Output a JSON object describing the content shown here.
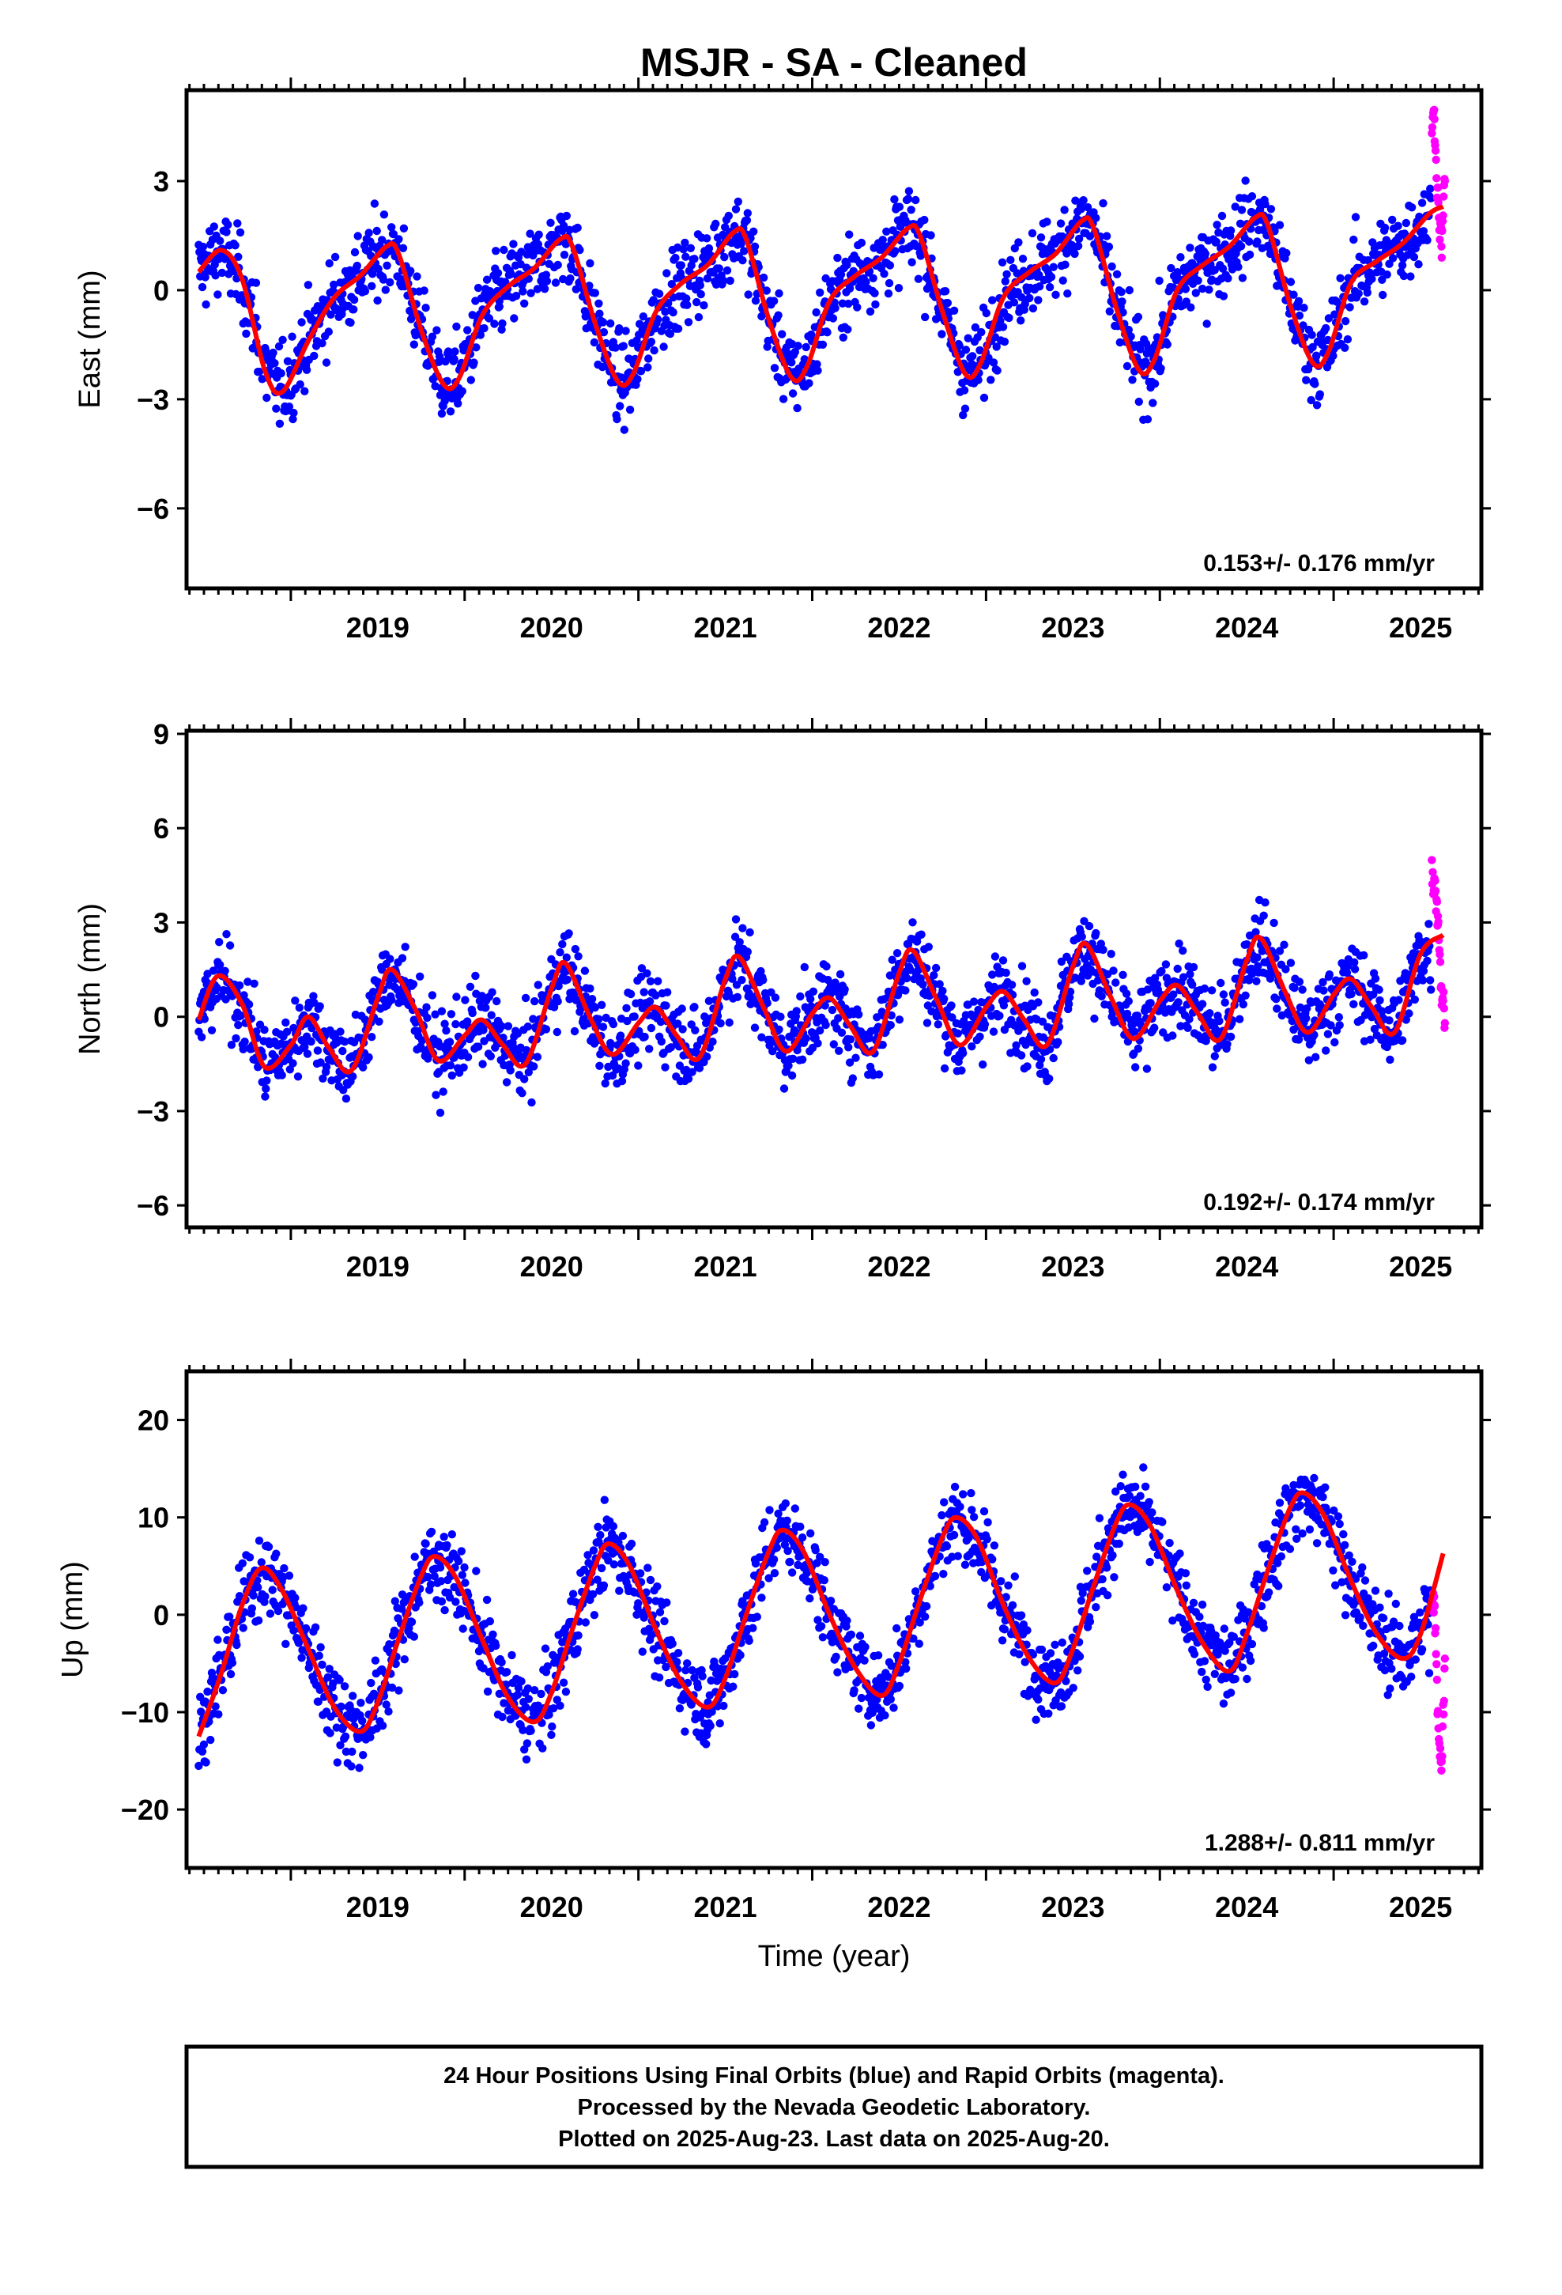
{
  "title": "MSJR  - SA - Cleaned",
  "colors": {
    "final": "#0000ff",
    "rapid": "#ff00ff",
    "model": "#ff0000",
    "frame": "#000000"
  },
  "footer": {
    "line1": "24 Hour Positions Using Final Orbits (blue) and Rapid Orbits (magenta).",
    "line2": "Processed by the Nevada Geodetic Laboratory.",
    "line3": "Plotted on 2025-Aug-23. Last data on 2025-Aug-20."
  },
  "chart_data": [
    {
      "type": "scatter",
      "component": "east",
      "ylabel": "East (mm)",
      "xlabel": "",
      "rate_text": "0.153+/- 0.176 mm/yr",
      "xlim": [
        2018.4,
        2025.85
      ],
      "ylim": [
        -8.2,
        5.5
      ],
      "yticks": [
        -6,
        -3,
        0,
        3
      ],
      "xticks": [
        2019,
        2020,
        2021,
        2022,
        2023,
        2024,
        2025
      ],
      "grid": false,
      "series": [
        {
          "role": "model",
          "x": [
            2018.47,
            2018.6,
            2018.72,
            2018.85,
            2018.95,
            2019.1,
            2019.25,
            2019.4,
            2019.55,
            2019.62,
            2019.75,
            2019.88,
            2019.97,
            2020.1,
            2020.25,
            2020.4,
            2020.55,
            2020.62,
            2020.75,
            2020.88,
            2020.97,
            2021.1,
            2021.25,
            2021.4,
            2021.55,
            2021.62,
            2021.75,
            2021.88,
            2021.97,
            2022.1,
            2022.25,
            2022.4,
            2022.55,
            2022.62,
            2022.75,
            2022.88,
            2022.97,
            2023.1,
            2023.25,
            2023.4,
            2023.55,
            2023.62,
            2023.75,
            2023.88,
            2023.97,
            2024.1,
            2024.25,
            2024.4,
            2024.55,
            2024.62,
            2024.75,
            2024.88,
            2024.97,
            2025.1,
            2025.25,
            2025.4,
            2025.55,
            2025.63
          ],
          "y": [
            0.5,
            1.1,
            0.3,
            -2.2,
            -2.8,
            -1.4,
            -0.2,
            0.4,
            1.2,
            1.0,
            -1.1,
            -2.6,
            -2.4,
            -0.7,
            0.1,
            0.6,
            1.4,
            1.2,
            -0.9,
            -2.5,
            -2.3,
            -0.6,
            0.2,
            0.7,
            1.6,
            1.4,
            -0.8,
            -2.4,
            -2.1,
            -0.3,
            0.4,
            0.9,
            1.7,
            1.5,
            -0.6,
            -2.3,
            -2.0,
            -0.2,
            0.5,
            1.0,
            1.9,
            1.7,
            -0.5,
            -2.2,
            -1.9,
            0.0,
            0.7,
            1.2,
            2.0,
            1.8,
            -0.4,
            -2.0,
            -1.7,
            0.2,
            0.8,
            1.3,
            2.1,
            2.3
          ]
        },
        {
          "role": "final",
          "x": [
            2018.5,
            2018.8,
            2019.0,
            2019.3,
            2019.6,
            2019.9,
            2020.2,
            2020.6,
            2020.9,
            2021.2,
            2021.6,
            2021.9,
            2022.2,
            2022.6,
            2022.9,
            2023.2,
            2023.6,
            2023.9,
            2024.2,
            2024.6,
            2024.9,
            2025.2,
            2025.5
          ],
          "y": [
            1.0,
            0.2,
            -2.9,
            -0.5,
            1.3,
            -2.5,
            -0.3,
            1.4,
            -2.4,
            -0.2,
            1.6,
            -2.3,
            0.2,
            1.8,
            -2.2,
            0.3,
            2.1,
            -2.0,
            0.5,
            2.0,
            -1.8,
            0.4,
            1.6
          ]
        },
        {
          "role": "rapid",
          "x": [
            2025.58,
            2025.6,
            2025.62,
            2025.64
          ],
          "y": [
            4.7,
            2.5,
            1.2,
            3.0
          ]
        }
      ]
    },
    {
      "type": "scatter",
      "component": "north",
      "ylabel": "North (mm)",
      "xlabel": "",
      "rate_text": "0.192+/- 0.174 mm/yr",
      "xlim": [
        2018.4,
        2025.85
      ],
      "ylim": [
        -6.7,
        9.1
      ],
      "yticks": [
        -6,
        -3,
        0,
        3,
        6,
        9
      ],
      "xticks": [
        2019,
        2020,
        2021,
        2022,
        2023,
        2024,
        2025
      ],
      "grid": false,
      "series": [
        {
          "role": "model",
          "x": [
            2018.47,
            2018.58,
            2018.72,
            2018.85,
            2019.0,
            2019.1,
            2019.22,
            2019.35,
            2019.5,
            2019.58,
            2019.72,
            2019.85,
            2020.0,
            2020.1,
            2020.22,
            2020.35,
            2020.5,
            2020.58,
            2020.72,
            2020.85,
            2021.0,
            2021.1,
            2021.22,
            2021.35,
            2021.5,
            2021.58,
            2021.72,
            2021.85,
            2022.0,
            2022.1,
            2022.22,
            2022.35,
            2022.5,
            2022.58,
            2022.72,
            2022.85,
            2023.0,
            2023.1,
            2023.22,
            2023.35,
            2023.5,
            2023.58,
            2023.72,
            2023.85,
            2024.0,
            2024.1,
            2024.22,
            2024.35,
            2024.5,
            2024.58,
            2024.72,
            2024.85,
            2025.0,
            2025.1,
            2025.22,
            2025.35,
            2025.5,
            2025.63
          ],
          "y": [
            -0.1,
            1.3,
            0.4,
            -1.6,
            -0.9,
            0.0,
            -1.0,
            -1.7,
            0.6,
            1.5,
            0.2,
            -1.4,
            -0.6,
            -0.1,
            -0.9,
            -1.5,
            0.9,
            1.7,
            0.0,
            -1.2,
            -0.2,
            0.3,
            -0.6,
            -1.3,
            1.2,
            1.9,
            0.3,
            -1.1,
            0.1,
            0.6,
            -0.3,
            -1.1,
            1.4,
            2.1,
            0.5,
            -0.9,
            0.3,
            0.8,
            -0.1,
            -0.9,
            1.6,
            2.3,
            0.6,
            -0.7,
            0.5,
            1.0,
            0.1,
            -0.7,
            1.8,
            2.5,
            0.8,
            -0.5,
            0.7,
            1.2,
            0.3,
            -0.5,
            2.0,
            2.6
          ]
        },
        {
          "role": "final",
          "x": [
            2018.5,
            2018.8,
            2019.1,
            2019.4,
            2019.6,
            2019.9,
            2020.2,
            2020.6,
            2020.9,
            2021.2,
            2021.6,
            2021.9,
            2022.2,
            2022.6,
            2022.9,
            2023.2,
            2023.6,
            2023.9,
            2024.2,
            2024.6,
            2024.9,
            2025.2,
            2025.5
          ],
          "y": [
            0.8,
            -1.3,
            -0.2,
            -1.5,
            1.2,
            -1.2,
            -0.4,
            1.5,
            -1.0,
            -0.3,
            1.7,
            -0.8,
            0.1,
            1.9,
            -0.6,
            0.3,
            2.1,
            -0.4,
            0.5,
            2.3,
            -0.2,
            0.7,
            2.4
          ]
        },
        {
          "role": "rapid",
          "x": [
            2025.58,
            2025.6,
            2025.62,
            2025.64
          ],
          "y": [
            4.4,
            3.2,
            0.9,
            -0.2
          ]
        }
      ]
    },
    {
      "type": "scatter",
      "component": "up",
      "ylabel": "Up (mm)",
      "xlabel": "Time (year)",
      "rate_text": "1.288+/- 0.811 mm/yr",
      "xlim": [
        2018.4,
        2025.85
      ],
      "ylim": [
        -26,
        25
      ],
      "yticks": [
        -20,
        -10,
        0,
        10,
        20
      ],
      "xticks": [
        2019,
        2020,
        2021,
        2022,
        2023,
        2024,
        2025
      ],
      "grid": false,
      "series": [
        {
          "role": "model",
          "x": [
            2018.47,
            2018.6,
            2018.72,
            2018.83,
            2018.95,
            2019.1,
            2019.25,
            2019.4,
            2019.5,
            2019.62,
            2019.75,
            2019.83,
            2019.95,
            2020.1,
            2020.25,
            2020.4,
            2020.5,
            2020.62,
            2020.75,
            2020.83,
            2020.95,
            2021.1,
            2021.25,
            2021.4,
            2021.5,
            2021.62,
            2021.75,
            2021.83,
            2021.95,
            2022.1,
            2022.25,
            2022.4,
            2022.5,
            2022.62,
            2022.75,
            2022.83,
            2022.95,
            2023.1,
            2023.25,
            2023.4,
            2023.5,
            2023.62,
            2023.75,
            2023.83,
            2023.95,
            2024.1,
            2024.25,
            2024.4,
            2024.5,
            2024.62,
            2024.75,
            2024.83,
            2024.95,
            2025.1,
            2025.25,
            2025.4,
            2025.5,
            2025.63
          ],
          "y": [
            -12.5,
            -6.0,
            1.0,
            4.8,
            2.5,
            -3.5,
            -9.5,
            -12.0,
            -9.0,
            -2.5,
            4.0,
            6.0,
            3.8,
            -2.5,
            -8.5,
            -11.0,
            -8.0,
            -1.5,
            5.0,
            7.3,
            5.0,
            -1.5,
            -7.0,
            -9.5,
            -6.5,
            0.0,
            6.5,
            8.7,
            6.5,
            0.0,
            -5.5,
            -8.3,
            -5.0,
            1.5,
            8.0,
            10.0,
            7.8,
            1.0,
            -4.5,
            -7.0,
            -3.5,
            3.0,
            9.5,
            11.3,
            9.0,
            2.5,
            -3.0,
            -5.8,
            -2.0,
            4.5,
            11.0,
            12.5,
            10.0,
            3.5,
            -2.0,
            -4.5,
            -2.0,
            6.3
          ]
        },
        {
          "role": "final",
          "x": [
            2018.5,
            2018.8,
            2019.1,
            2019.4,
            2019.6,
            2019.85,
            2020.1,
            2020.4,
            2020.6,
            2020.85,
            2021.1,
            2021.4,
            2021.6,
            2021.85,
            2022.1,
            2022.4,
            2022.6,
            2022.85,
            2023.1,
            2023.4,
            2023.6,
            2023.85,
            2024.1,
            2024.4,
            2024.6,
            2024.85,
            2025.1,
            2025.4,
            2025.55
          ],
          "y": [
            -9.0,
            4.5,
            -3.0,
            -12.0,
            -3.0,
            7.0,
            -2.0,
            -10.0,
            -1.0,
            8.0,
            -1.0,
            -9.0,
            0.0,
            9.0,
            0.0,
            -8.0,
            1.0,
            10.0,
            1.0,
            -7.0,
            3.0,
            11.0,
            3.0,
            -5.0,
            4.0,
            12.0,
            4.0,
            -4.0,
            -6.0
          ]
        },
        {
          "role": "rapid",
          "x": [
            2025.58,
            2025.6,
            2025.62,
            2025.64
          ],
          "y": [
            1.0,
            -10.0,
            -16.0,
            -4.5
          ]
        }
      ]
    }
  ]
}
